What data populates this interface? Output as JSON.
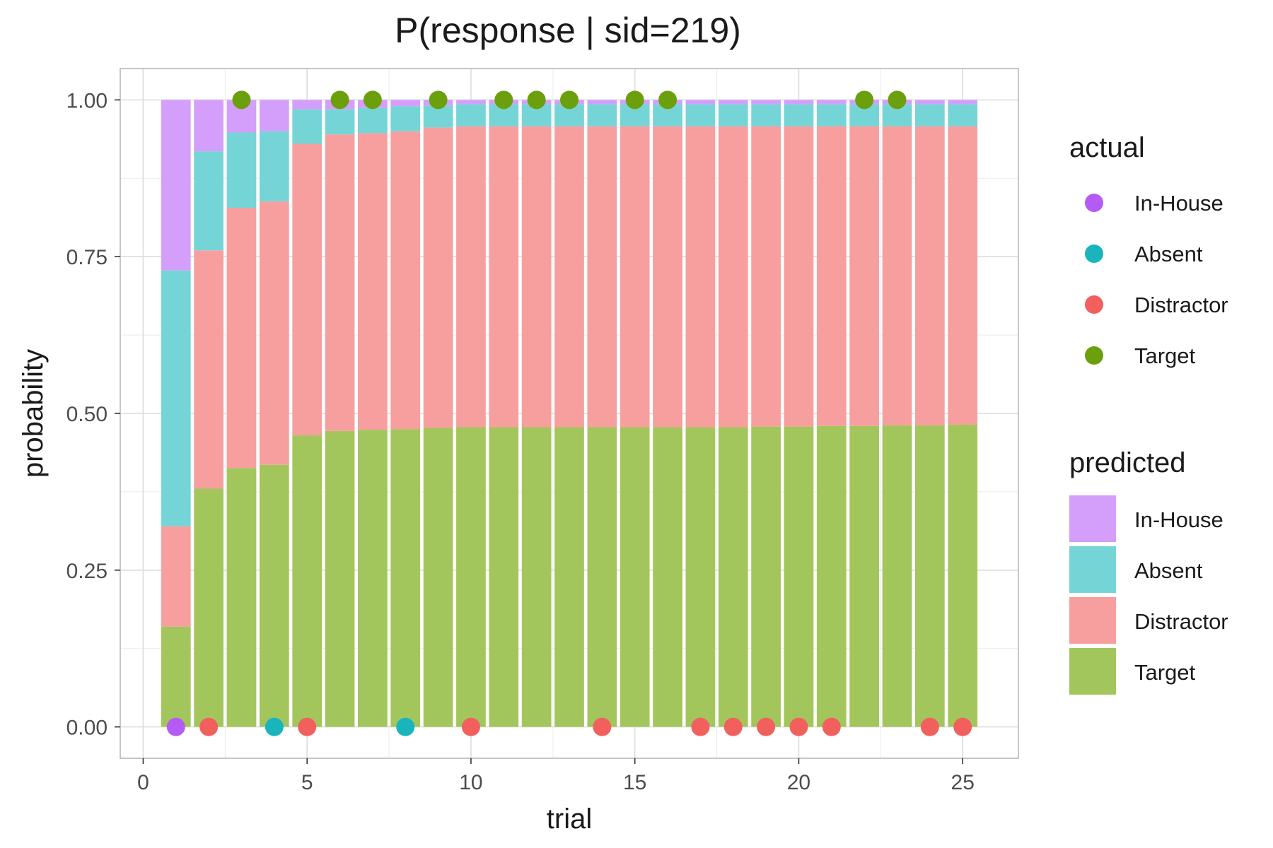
{
  "chart_data": {
    "type": "bar",
    "title": "P(response | sid=219)",
    "xlabel": "trial",
    "ylabel": "probability",
    "xlim": [
      -0.7,
      26.7
    ],
    "ylim": [
      -0.05,
      1.05
    ],
    "x_ticks": [
      0,
      5,
      10,
      15,
      20,
      25
    ],
    "y_ticks": [
      0,
      0.25,
      0.5,
      0.75,
      1.0
    ],
    "x_tick_labels": [
      "0",
      "5",
      "10",
      "15",
      "20",
      "25"
    ],
    "y_tick_labels": [
      "0.00",
      "0.25",
      "0.50",
      "0.75",
      "1.00"
    ],
    "grid": true,
    "stacked": true,
    "x": [
      1,
      2,
      3,
      4,
      5,
      6,
      7,
      8,
      9,
      10,
      11,
      12,
      13,
      14,
      15,
      16,
      17,
      18,
      19,
      20,
      21,
      22,
      23,
      24,
      25
    ],
    "series": [
      {
        "name": "Target",
        "color": "#a3c65c",
        "values": [
          0.16,
          0.38,
          0.413,
          0.418,
          0.465,
          0.472,
          0.474,
          0.475,
          0.477,
          0.478,
          0.478,
          0.478,
          0.478,
          0.478,
          0.478,
          0.478,
          0.478,
          0.478,
          0.479,
          0.479,
          0.48,
          0.48,
          0.481,
          0.481,
          0.482
        ]
      },
      {
        "name": "Distractor",
        "color": "#f79f9e",
        "values": [
          0.16,
          0.38,
          0.415,
          0.42,
          0.465,
          0.473,
          0.473,
          0.475,
          0.479,
          0.48,
          0.48,
          0.48,
          0.48,
          0.48,
          0.48,
          0.48,
          0.48,
          0.48,
          0.479,
          0.479,
          0.478,
          0.478,
          0.477,
          0.477,
          0.476
        ]
      },
      {
        "name": "Absent",
        "color": "#75d5d6",
        "values": [
          0.408,
          0.158,
          0.12,
          0.112,
          0.055,
          0.04,
          0.04,
          0.04,
          0.035,
          0.035,
          0.035,
          0.035,
          0.035,
          0.035,
          0.035,
          0.035,
          0.035,
          0.035,
          0.035,
          0.035,
          0.035,
          0.035,
          0.035,
          0.035,
          0.035
        ]
      },
      {
        "name": "In-House",
        "color": "#d49ffa",
        "values": [
          0.272,
          0.082,
          0.052,
          0.05,
          0.015,
          0.015,
          0.013,
          0.01,
          0.009,
          0.007,
          0.007,
          0.007,
          0.007,
          0.007,
          0.007,
          0.007,
          0.007,
          0.007,
          0.007,
          0.007,
          0.007,
          0.007,
          0.007,
          0.007,
          0.007
        ]
      }
    ],
    "actual": {
      "points": [
        {
          "x": 1,
          "y": 0,
          "category": "In-House"
        },
        {
          "x": 2,
          "y": 0,
          "category": "Distractor"
        },
        {
          "x": 3,
          "y": 1,
          "category": "Target"
        },
        {
          "x": 4,
          "y": 0,
          "category": "Absent"
        },
        {
          "x": 5,
          "y": 0,
          "category": "Distractor"
        },
        {
          "x": 6,
          "y": 1,
          "category": "Target"
        },
        {
          "x": 7,
          "y": 1,
          "category": "Target"
        },
        {
          "x": 8,
          "y": 0,
          "category": "Absent"
        },
        {
          "x": 9,
          "y": 1,
          "category": "Target"
        },
        {
          "x": 10,
          "y": 0,
          "category": "Distractor"
        },
        {
          "x": 11,
          "y": 1,
          "category": "Target"
        },
        {
          "x": 12,
          "y": 1,
          "category": "Target"
        },
        {
          "x": 13,
          "y": 1,
          "category": "Target"
        },
        {
          "x": 14,
          "y": 0,
          "category": "Distractor"
        },
        {
          "x": 15,
          "y": 1,
          "category": "Target"
        },
        {
          "x": 16,
          "y": 1,
          "category": "Target"
        },
        {
          "x": 17,
          "y": 0,
          "category": "Distractor"
        },
        {
          "x": 18,
          "y": 0,
          "category": "Distractor"
        },
        {
          "x": 19,
          "y": 0,
          "category": "Distractor"
        },
        {
          "x": 20,
          "y": 0,
          "category": "Distractor"
        },
        {
          "x": 21,
          "y": 0,
          "category": "Distractor"
        },
        {
          "x": 22,
          "y": 1,
          "category": "Target"
        },
        {
          "x": 23,
          "y": 1,
          "category": "Target"
        },
        {
          "x": 24,
          "y": 0,
          "category": "Distractor"
        },
        {
          "x": 25,
          "y": 0,
          "category": "Distractor"
        }
      ],
      "colors": {
        "In-House": "#b45af5",
        "Absent": "#1ab5bc",
        "Distractor": "#f2605e",
        "Target": "#6ba00c"
      }
    },
    "legends": [
      {
        "title": "actual",
        "kind": "point",
        "items": [
          {
            "label": "In-House",
            "color": "#b45af5"
          },
          {
            "label": "Absent",
            "color": "#1ab5bc"
          },
          {
            "label": "Distractor",
            "color": "#f2605e"
          },
          {
            "label": "Target",
            "color": "#6ba00c"
          }
        ]
      },
      {
        "title": "predicted",
        "kind": "fill",
        "items": [
          {
            "label": "In-House",
            "color": "#d49ffa"
          },
          {
            "label": "Absent",
            "color": "#75d5d6"
          },
          {
            "label": "Distractor",
            "color": "#f79f9e"
          },
          {
            "label": "Target",
            "color": "#a3c65c"
          }
        ]
      }
    ],
    "legend_position": "right"
  }
}
